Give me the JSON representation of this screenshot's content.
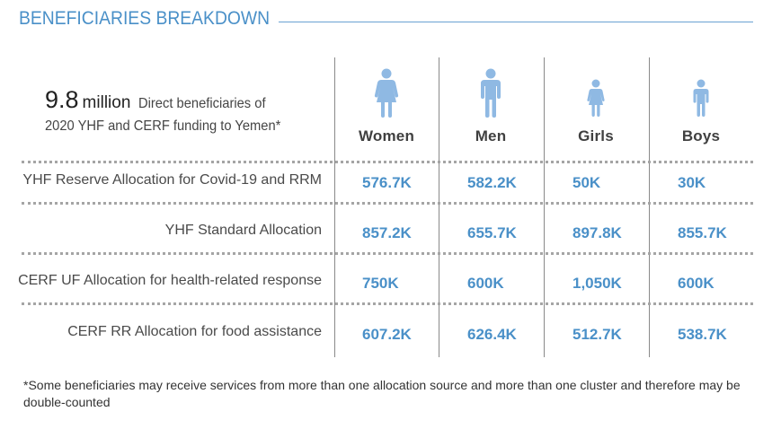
{
  "header": {
    "title": "BENEFICIARIES BREAKDOWN"
  },
  "summary": {
    "number": "9.8",
    "unit": "million",
    "label_line1": "Direct beneficiaries of",
    "label_line2": "2020 YHF and CERF funding to Yemen*"
  },
  "columns": [
    {
      "label": "Women",
      "icon": "woman-icon"
    },
    {
      "label": "Men",
      "icon": "man-icon"
    },
    {
      "label": "Girls",
      "icon": "girl-icon"
    },
    {
      "label": "Boys",
      "icon": "boy-icon"
    }
  ],
  "rows": [
    {
      "label": "YHF Reserve Allocation for Covid-19 and RRM",
      "values": [
        "576.7K",
        "582.2K",
        "50K",
        "30K"
      ]
    },
    {
      "label": "YHF Standard Allocation",
      "values": [
        "857.2K",
        "655.7K",
        "897.8K",
        "855.7K"
      ]
    },
    {
      "label": "CERF UF Allocation for health-related response",
      "values": [
        "750K",
        "600K",
        "1,050K",
        "600K"
      ]
    },
    {
      "label": "CERF RR Allocation for food assistance",
      "values": [
        "607.2K",
        "626.4K",
        "512.7K",
        "538.7K"
      ]
    }
  ],
  "footnote": "*Some beneficiaries may receive services from more than one allocation source and more than one cluster and therefore may be double-counted",
  "colors": {
    "accent": "#4a90c8",
    "icon": "#8fb9e3",
    "text": "#404040",
    "rule": "#a5a5a5"
  }
}
